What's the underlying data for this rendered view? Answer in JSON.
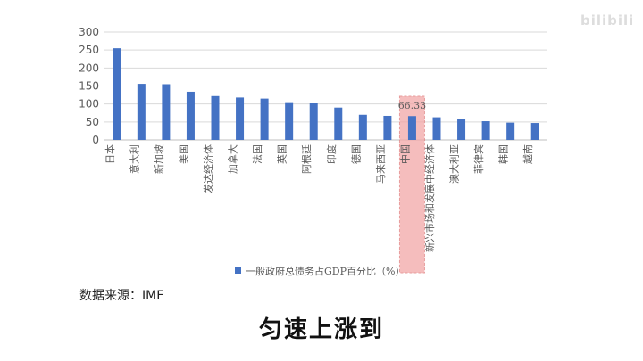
{
  "watermark": "bilibili",
  "source_text": "数据来源：IMF",
  "subtitle": "匀速上涨到",
  "chart_data": {
    "type": "bar",
    "categories": [
      "日本",
      "意大利",
      "新加坡",
      "美国",
      "发达经济体",
      "加拿大",
      "法国",
      "英国",
      "阿根廷",
      "印度",
      "德国",
      "马来西亚",
      "中国",
      "新兴市场和发展中经济体",
      "澳大利亚",
      "菲律宾",
      "韩国",
      "越南"
    ],
    "values": [
      255,
      156,
      155,
      134,
      122,
      118,
      115,
      105,
      103,
      90,
      70,
      67,
      66.33,
      63,
      57,
      52,
      48,
      47
    ],
    "ylim": [
      0,
      300
    ],
    "yticks": [
      "0",
      "50",
      "100",
      "150",
      "200",
      "250",
      "300"
    ],
    "grid": true,
    "bar_color": "#4472c4",
    "highlight": {
      "category": "中国",
      "label": "66.33",
      "color": "#f2a7a7"
    },
    "legend": {
      "label": "一般政府总债务占GDP百分比（%）",
      "position": "bottom"
    }
  }
}
